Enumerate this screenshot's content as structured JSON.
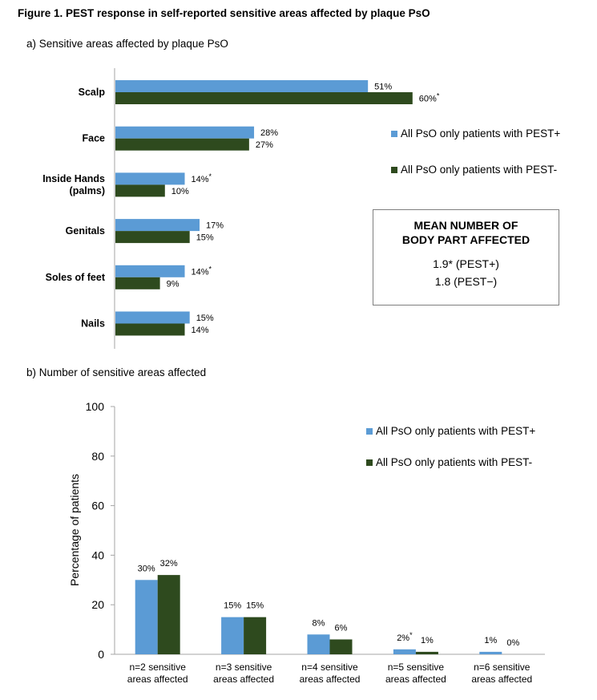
{
  "figure_title": "Figure 1. PEST response in self-reported sensitive areas affected by plaque PsO",
  "colors": {
    "pest_pos": "#5b9bd5",
    "pest_neg": "#2e4a1e",
    "axis": "#a6a6a6"
  },
  "mean_box": {
    "title": "MEAN NUMBER OF\nBODY PART AFFECTED",
    "values": [
      "1.9* (PEST+)",
      "1.8 (PEST−)"
    ]
  },
  "chart_data": [
    {
      "type": "bar",
      "orientation": "horizontal",
      "title": "a) Sensitive areas affected by plaque PsO",
      "categories": [
        "Scalp",
        "Face",
        "Inside Hands\n(palms)",
        "Genitals",
        "Soles of feet",
        "Nails"
      ],
      "series": [
        {
          "name": "All PsO only patients with PEST+",
          "values": [
            51,
            28,
            14,
            17,
            14,
            15
          ],
          "labels": [
            "51%",
            "28%",
            "14%*",
            "17%",
            "14%*",
            "15%"
          ]
        },
        {
          "name": "All PsO only patients with PEST-",
          "values": [
            60,
            27,
            10,
            15,
            9,
            14
          ],
          "labels": [
            "60%*",
            "27%",
            "10%",
            "15%",
            "9%",
            "14%"
          ]
        }
      ],
      "legend_position": "right"
    },
    {
      "type": "bar",
      "orientation": "vertical",
      "title": "b) Number of sensitive areas affected",
      "ylabel": "Percentage of patients",
      "ylim": [
        0,
        100
      ],
      "yticks": [
        0,
        20,
        40,
        60,
        80,
        100
      ],
      "categories": [
        "n=2 sensitive\nareas affected",
        "n=3 sensitive\nareas affected",
        "n=4 sensitive\nareas affected",
        "n=5 sensitive\nareas affected",
        "n=6 sensitive\nareas affected"
      ],
      "series": [
        {
          "name": "All PsO only patients with PEST+",
          "values": [
            30,
            15,
            8,
            2,
            1
          ],
          "labels": [
            "30%",
            "15%",
            "8%",
            "2%*",
            "1%"
          ]
        },
        {
          "name": "All PsO only patients with PEST-",
          "values": [
            32,
            15,
            6,
            1,
            0
          ],
          "labels": [
            "32%",
            "15%",
            "6%",
            "1%",
            "0%"
          ]
        }
      ],
      "legend_position": "top-right"
    }
  ]
}
